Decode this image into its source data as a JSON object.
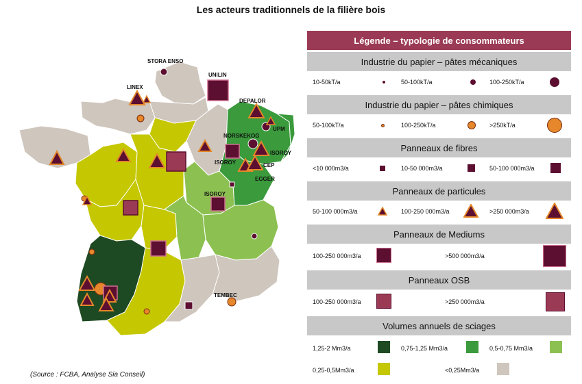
{
  "title": "Les acteurs traditionnels de la filière bois",
  "source": "(Source : FCBA, Analyse Sia Conseil)",
  "colors": {
    "dark_green": "#1e4a23",
    "green": "#3a9a3c",
    "light_green": "#8cc152",
    "yellow_green": "#c5c700",
    "beige": "#cfc6bd",
    "mechanical_pulp": "#5c0f30",
    "chemical_pulp": "#e5872a",
    "accent": "#9b3a55"
  },
  "map_labels": [
    "STORA ENSO",
    "UNILIN",
    "LINEX",
    "DEPALOR",
    "UPM",
    "NORSKEKOG",
    "ISOROY",
    "ISOROY",
    "CEP",
    "EGGER",
    "ISOROY",
    "TEMBEC"
  ],
  "legend": {
    "title": "Légende – typologie de consommateurs",
    "sections": [
      {
        "heading": "Industrie du papier – pâtes mécaniques",
        "items": [
          "10-50kT/a",
          "50-100kT/a",
          "100-250kT/a"
        ]
      },
      {
        "heading": "Industrie du papier – pâtes chimiques",
        "items": [
          "50-100kT/a",
          "100-250kT/a",
          ">250kT/a"
        ]
      },
      {
        "heading": "Panneaux de fibres",
        "items": [
          "<10 000m3/a",
          "10-50 000m3/a",
          "50-100 000m3/a"
        ]
      },
      {
        "heading": "Panneaux de particules",
        "items": [
          "50-100 000m3/a",
          "100-250 000m3/a",
          ">250 000m3/a"
        ]
      },
      {
        "heading": "Panneaux de Mediums",
        "items": [
          "100-250 000m3/a",
          ">500 000m3/a"
        ]
      },
      {
        "heading": "Panneaux OSB",
        "items": [
          "100-250 000m3/a",
          ">250 000m3/a"
        ]
      },
      {
        "heading": "Volumes annuels de sciages",
        "items": [
          "1,25-2 Mm3/a",
          "0,75-1,25 Mm3/a",
          "0,5-0,75 Mm3/a",
          "0,25-0,5Mm3/a",
          "<0,25Mm3/a"
        ]
      }
    ]
  }
}
